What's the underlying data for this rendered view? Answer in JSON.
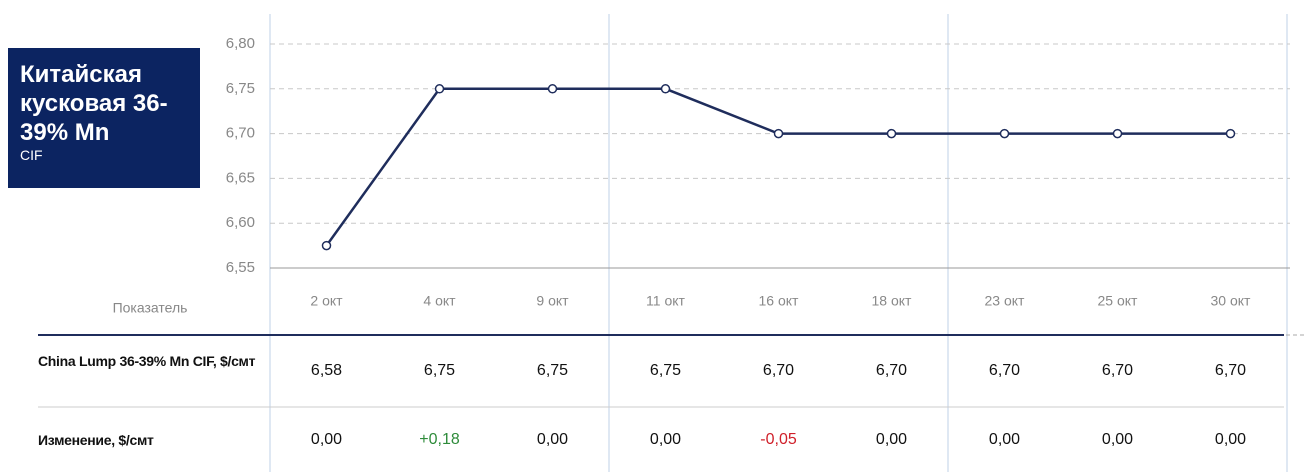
{
  "chart_data": {
    "type": "line",
    "title": "Китайская кусковая 36-39% Mn",
    "subtitle": "CIF",
    "row_header": "Показатель",
    "categories": [
      "2 окт",
      "4 окт",
      "9 окт",
      "11 окт",
      "16 окт",
      "18 окт",
      "23 окт",
      "25 окт",
      "30 окт"
    ],
    "series": [
      {
        "name": "China Lump 36-39% Mn CIF, $/смт",
        "color": "#1f2d5c",
        "values": [
          6.575,
          6.75,
          6.75,
          6.75,
          6.7,
          6.7,
          6.7,
          6.7,
          6.7
        ],
        "value_labels": [
          "6,58",
          "6,75",
          "6,75",
          "6,75",
          "6,70",
          "6,70",
          "6,70",
          "6,70",
          "6,70"
        ]
      }
    ],
    "change": {
      "name": "Изменение, $/смт",
      "values": [
        0,
        0.18,
        0,
        0,
        -0.05,
        0,
        0,
        0,
        0
      ],
      "value_labels": [
        "0,00",
        "+0,18",
        "0,00",
        "0,00",
        "-0,05",
        "0,00",
        "0,00",
        "0,00",
        "0,00"
      ]
    },
    "ylim": [
      6.55,
      6.8
    ],
    "yticks": [
      {
        "value": 6.55,
        "label": "6,55"
      },
      {
        "value": 6.6,
        "label": "6,60"
      },
      {
        "value": 6.65,
        "label": "6,65"
      },
      {
        "value": 6.7,
        "label": "6,70"
      },
      {
        "value": 6.75,
        "label": "6,75"
      },
      {
        "value": 6.8,
        "label": "6,80"
      }
    ],
    "grid": true
  }
}
